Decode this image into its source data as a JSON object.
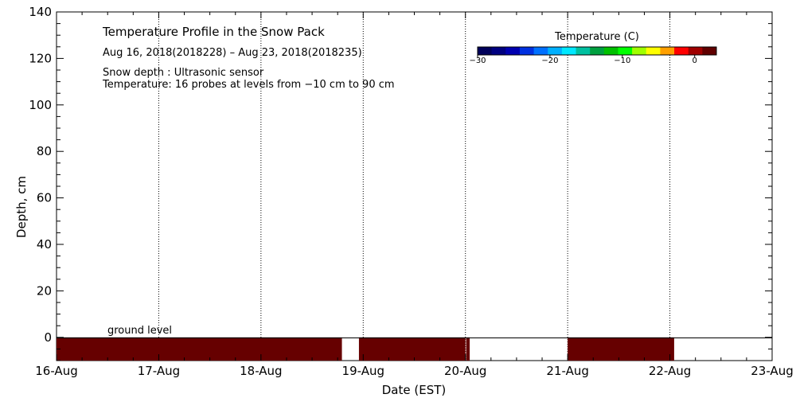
{
  "chart_data": {
    "type": "area",
    "title": "Temperature Profile in the Snow Pack",
    "subtitle": "Aug 16, 2018(2018228) – Aug 23, 2018(2018235)",
    "notes": [
      "Snow depth : Ultrasonic sensor",
      "Temperature: 16 probes at levels from −10 cm to 90 cm"
    ],
    "xlabel": "Date (EST)",
    "ylabel": "Depth, cm",
    "xlim": [
      "16-Aug",
      "23-Aug"
    ],
    "ylim": [
      -10,
      140
    ],
    "x_tick_labels": [
      "16-Aug",
      "17-Aug",
      "18-Aug",
      "19-Aug",
      "20-Aug",
      "21-Aug",
      "22-Aug",
      "23-Aug"
    ],
    "y_tick_labels": [
      "0",
      "20",
      "40",
      "60",
      "80",
      "100",
      "120",
      "140"
    ],
    "y_ticks": [
      0,
      20,
      40,
      60,
      80,
      100,
      120,
      140
    ],
    "vertical_grid": true,
    "ground_level_label": "ground level",
    "ground_level": 0,
    "colorbar": {
      "title": "Temperature (C)",
      "range": [
        -30,
        3
      ],
      "tick_labels": [
        "−30",
        "−20",
        "−10",
        "0"
      ],
      "tick_values": [
        -30,
        -20,
        -10,
        0
      ],
      "colors": [
        "#00005a",
        "#000080",
        "#0000b0",
        "#0030e0",
        "#0070ff",
        "#00b0ff",
        "#00e8ff",
        "#00c0a0",
        "#00a040",
        "#00c000",
        "#00ff00",
        "#a0ff00",
        "#ffff00",
        "#ffa000",
        "#ff0000",
        "#a00000",
        "#600000"
      ]
    },
    "series": [
      {
        "band": [
          -10,
          0
        ],
        "color": "#660000",
        "segments": [
          {
            "start": "2018-08-16 00:00",
            "end": "2018-08-18 19:00"
          },
          {
            "start": "2018-08-18 23:00",
            "end": "2018-08-20 00:00"
          },
          {
            "start": "2018-08-20 00:10",
            "end": "2018-08-20 01:00"
          },
          {
            "start": "2018-08-21 00:00",
            "end": "2018-08-22 01:00"
          }
        ]
      }
    ]
  }
}
